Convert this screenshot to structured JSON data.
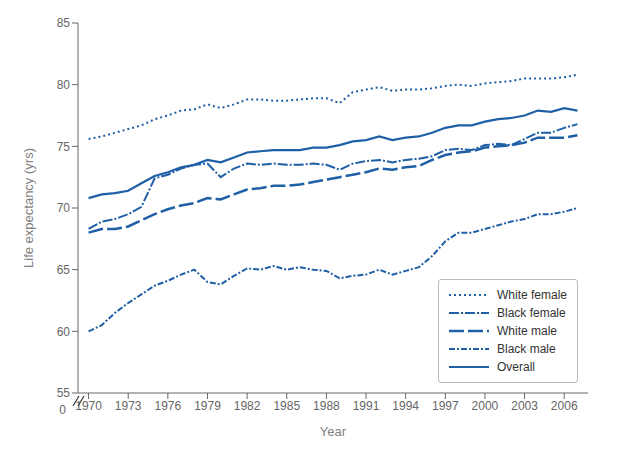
{
  "chart_data": {
    "type": "line",
    "xlabel": "Year",
    "ylabel": "Life expectancy (yrs)",
    "x": [
      1970,
      1971,
      1972,
      1973,
      1974,
      1975,
      1976,
      1977,
      1978,
      1979,
      1980,
      1981,
      1982,
      1983,
      1984,
      1985,
      1986,
      1987,
      1988,
      1989,
      1990,
      1991,
      1992,
      1993,
      1994,
      1995,
      1996,
      1997,
      1998,
      1999,
      2000,
      2001,
      2002,
      2003,
      2004,
      2005,
      2006,
      2007
    ],
    "series": [
      {
        "name": "White female",
        "color": "#1f5fa6",
        "line_style": "dotted",
        "values": [
          75.6,
          75.8,
          76.1,
          76.4,
          76.7,
          77.2,
          77.5,
          77.9,
          78.0,
          78.4,
          78.1,
          78.4,
          78.8,
          78.8,
          78.7,
          78.7,
          78.8,
          78.9,
          78.9,
          78.5,
          79.4,
          79.6,
          79.8,
          79.5,
          79.6,
          79.6,
          79.7,
          79.9,
          80.0,
          79.9,
          80.1,
          80.2,
          80.3,
          80.5,
          80.5,
          80.5,
          80.6,
          80.8
        ]
      },
      {
        "name": "Black female",
        "color": "#1f5fa6",
        "line_style": "longdashdot",
        "values": [
          68.3,
          68.9,
          69.1,
          69.5,
          70.1,
          72.4,
          72.7,
          73.2,
          73.5,
          73.6,
          72.5,
          73.2,
          73.6,
          73.5,
          73.6,
          73.5,
          73.5,
          73.6,
          73.5,
          73.1,
          73.6,
          73.8,
          73.9,
          73.7,
          73.9,
          74.0,
          74.2,
          74.7,
          74.8,
          74.7,
          75.1,
          75.2,
          75.1,
          75.6,
          76.1,
          76.1,
          76.5,
          76.8
        ]
      },
      {
        "name": "White male",
        "color": "#1f5fa6",
        "line_style": "dashed",
        "values": [
          68.0,
          68.3,
          68.3,
          68.5,
          69.0,
          69.5,
          69.9,
          70.2,
          70.4,
          70.8,
          70.7,
          71.1,
          71.5,
          71.6,
          71.8,
          71.8,
          71.9,
          72.1,
          72.3,
          72.5,
          72.7,
          72.9,
          73.2,
          73.1,
          73.3,
          73.4,
          73.9,
          74.3,
          74.5,
          74.6,
          74.9,
          75.0,
          75.1,
          75.3,
          75.7,
          75.7,
          75.7,
          75.9
        ]
      },
      {
        "name": "Black male",
        "color": "#1f5fa6",
        "line_style": "dashdot",
        "values": [
          60.0,
          60.5,
          61.5,
          62.3,
          63.0,
          63.7,
          64.1,
          64.6,
          65.0,
          64.0,
          63.8,
          64.5,
          65.1,
          65.0,
          65.3,
          65.0,
          65.2,
          65.0,
          64.9,
          64.3,
          64.5,
          64.6,
          65.0,
          64.6,
          64.9,
          65.2,
          66.1,
          67.3,
          68.0,
          68.0,
          68.3,
          68.6,
          68.9,
          69.1,
          69.5,
          69.5,
          69.7,
          70.0
        ]
      },
      {
        "name": "Overall",
        "color": "#1f5fa6",
        "line_style": "solid",
        "values": [
          70.8,
          71.1,
          71.2,
          71.4,
          72.0,
          72.6,
          72.9,
          73.3,
          73.5,
          73.9,
          73.7,
          74.1,
          74.5,
          74.6,
          74.7,
          74.7,
          74.7,
          74.9,
          74.9,
          75.1,
          75.4,
          75.5,
          75.8,
          75.5,
          75.7,
          75.8,
          76.1,
          76.5,
          76.7,
          76.7,
          77.0,
          77.2,
          77.3,
          77.5,
          77.9,
          77.8,
          78.1,
          77.9
        ]
      }
    ],
    "xlim": [
      1969.2,
      2007.8
    ],
    "xticks": [
      1970,
      1973,
      1976,
      1979,
      1982,
      1985,
      1988,
      1991,
      1994,
      1997,
      2000,
      2003,
      2006
    ],
    "ylim": [
      55,
      85
    ],
    "yticks": [
      55,
      60,
      65,
      70,
      75,
      80,
      85
    ],
    "grid": false,
    "legend": "lower right",
    "annotations": [
      "0"
    ]
  }
}
